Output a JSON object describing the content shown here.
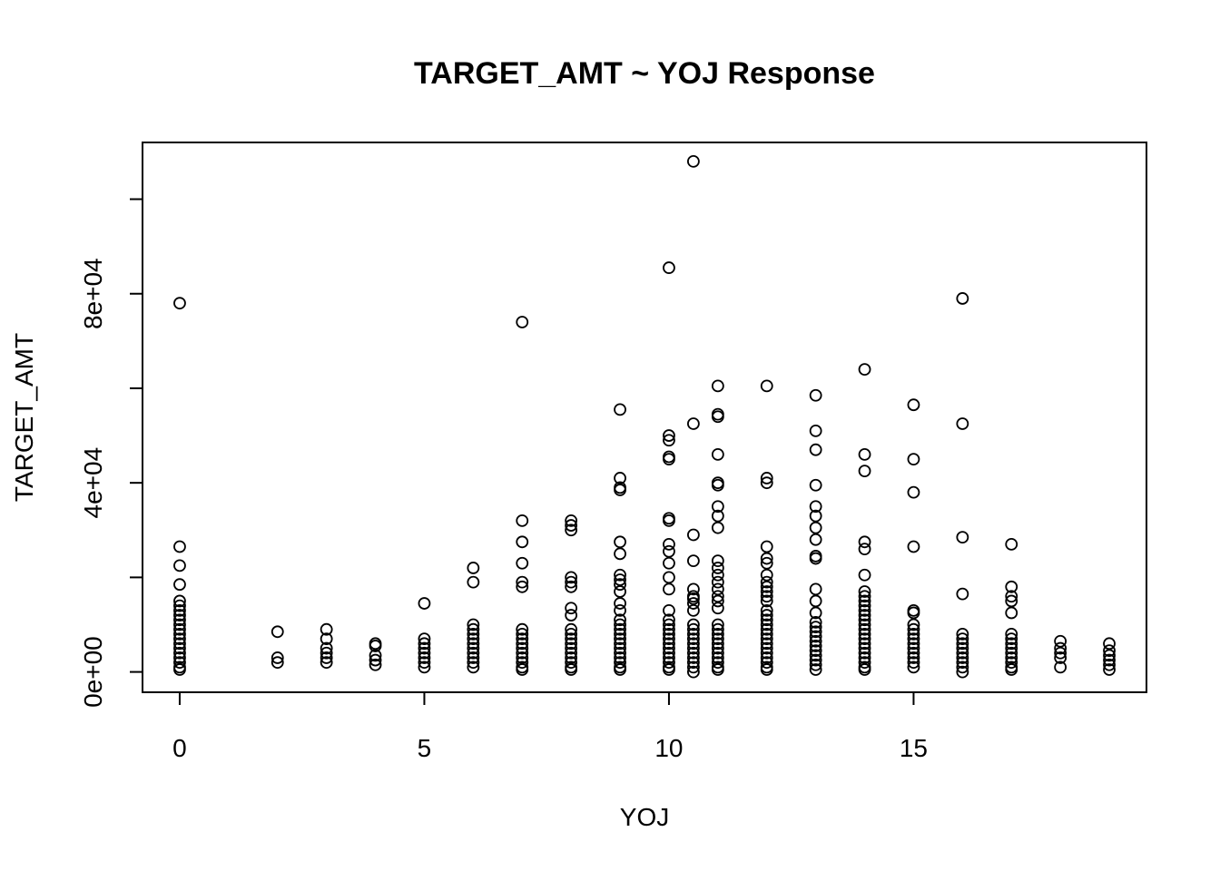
{
  "chart_data": {
    "type": "scatter",
    "title": "TARGET_AMT ~ YOJ Response",
    "xlabel": "YOJ",
    "ylabel": "TARGET_AMT",
    "xlim": [
      -0.76,
      19.76
    ],
    "ylim": [
      -4300,
      112000
    ],
    "x_ticks": [
      0,
      5,
      10,
      15
    ],
    "x_tick_labels": [
      "0",
      "5",
      "10",
      "15"
    ],
    "y_ticks": [
      0,
      20000,
      40000,
      60000,
      80000,
      100000
    ],
    "y_tick_labels": [
      "0e+00",
      "",
      "4e+04",
      "",
      "8e+04",
      ""
    ],
    "grid": false,
    "legend": "none",
    "points": [
      [
        0,
        78000
      ],
      [
        0,
        26500
      ],
      [
        0,
        22500
      ],
      [
        0,
        18500
      ],
      [
        0,
        15000
      ],
      [
        0,
        14000
      ],
      [
        0,
        13000
      ],
      [
        0,
        12000
      ],
      [
        0,
        11000
      ],
      [
        0,
        10000
      ],
      [
        0,
        9000
      ],
      [
        0,
        8000
      ],
      [
        0,
        7000
      ],
      [
        0,
        6000
      ],
      [
        0,
        5000
      ],
      [
        0,
        4000
      ],
      [
        0,
        3000
      ],
      [
        0,
        2000
      ],
      [
        0,
        1000
      ],
      [
        0,
        500
      ],
      [
        2,
        8500
      ],
      [
        2,
        3000
      ],
      [
        2,
        2000
      ],
      [
        3,
        9000
      ],
      [
        3,
        7000
      ],
      [
        3,
        5000
      ],
      [
        3,
        4000
      ],
      [
        3,
        3000
      ],
      [
        3,
        2000
      ],
      [
        4,
        6000
      ],
      [
        4,
        5500
      ],
      [
        4,
        3500
      ],
      [
        4,
        2500
      ],
      [
        4,
        1500
      ],
      [
        5,
        14500
      ],
      [
        5,
        7000
      ],
      [
        5,
        6000
      ],
      [
        5,
        5000
      ],
      [
        5,
        4000
      ],
      [
        5,
        3000
      ],
      [
        5,
        2000
      ],
      [
        5,
        1000
      ],
      [
        6,
        22000
      ],
      [
        6,
        19000
      ],
      [
        6,
        10000
      ],
      [
        6,
        9000
      ],
      [
        6,
        8000
      ],
      [
        6,
        7000
      ],
      [
        6,
        6000
      ],
      [
        6,
        5000
      ],
      [
        6,
        4000
      ],
      [
        6,
        3000
      ],
      [
        6,
        2000
      ],
      [
        6,
        1000
      ],
      [
        7,
        74000
      ],
      [
        7,
        32000
      ],
      [
        7,
        27500
      ],
      [
        7,
        23000
      ],
      [
        7,
        19000
      ],
      [
        7,
        18000
      ],
      [
        7,
        9000
      ],
      [
        7,
        8000
      ],
      [
        7,
        7000
      ],
      [
        7,
        6000
      ],
      [
        7,
        5000
      ],
      [
        7,
        4000
      ],
      [
        7,
        3000
      ],
      [
        7,
        2000
      ],
      [
        7,
        1000
      ],
      [
        7,
        500
      ],
      [
        8,
        32000
      ],
      [
        8,
        31000
      ],
      [
        8,
        30000
      ],
      [
        8,
        20000
      ],
      [
        8,
        19000
      ],
      [
        8,
        18000
      ],
      [
        8,
        13500
      ],
      [
        8,
        12000
      ],
      [
        8,
        9000
      ],
      [
        8,
        8000
      ],
      [
        8,
        7000
      ],
      [
        8,
        6000
      ],
      [
        8,
        5000
      ],
      [
        8,
        4000
      ],
      [
        8,
        3000
      ],
      [
        8,
        2000
      ],
      [
        8,
        1000
      ],
      [
        8,
        500
      ],
      [
        9,
        55500
      ],
      [
        9,
        41000
      ],
      [
        9,
        39000
      ],
      [
        9,
        38500
      ],
      [
        9,
        27500
      ],
      [
        9,
        25000
      ],
      [
        9,
        20500
      ],
      [
        9,
        19500
      ],
      [
        9,
        18500
      ],
      [
        9,
        17000
      ],
      [
        9,
        14500
      ],
      [
        9,
        13000
      ],
      [
        9,
        11000
      ],
      [
        9,
        10000
      ],
      [
        9,
        9000
      ],
      [
        9,
        8000
      ],
      [
        9,
        7000
      ],
      [
        9,
        6000
      ],
      [
        9,
        5000
      ],
      [
        9,
        4000
      ],
      [
        9,
        3000
      ],
      [
        9,
        2000
      ],
      [
        9,
        1000
      ],
      [
        9,
        500
      ],
      [
        10,
        85500
      ],
      [
        10,
        50000
      ],
      [
        10,
        49000
      ],
      [
        10,
        45500
      ],
      [
        10,
        45000
      ],
      [
        10,
        32500
      ],
      [
        10,
        32000
      ],
      [
        10,
        27000
      ],
      [
        10,
        25500
      ],
      [
        10,
        23000
      ],
      [
        10,
        20000
      ],
      [
        10,
        17500
      ],
      [
        10,
        13000
      ],
      [
        10,
        11000
      ],
      [
        10,
        10000
      ],
      [
        10,
        9000
      ],
      [
        10,
        8000
      ],
      [
        10,
        7000
      ],
      [
        10,
        6000
      ],
      [
        10,
        5000
      ],
      [
        10,
        4000
      ],
      [
        10,
        3000
      ],
      [
        10,
        2000
      ],
      [
        10,
        1000
      ],
      [
        10,
        500
      ],
      [
        10.5,
        108000
      ],
      [
        10.5,
        52500
      ],
      [
        10.5,
        29000
      ],
      [
        10.5,
        23500
      ],
      [
        10.5,
        17500
      ],
      [
        10.5,
        16000
      ],
      [
        10.5,
        15500
      ],
      [
        10.5,
        14500
      ],
      [
        10.5,
        13000
      ],
      [
        10.5,
        10000
      ],
      [
        10.5,
        9000
      ],
      [
        10.5,
        8000
      ],
      [
        10.5,
        7000
      ],
      [
        10.5,
        6000
      ],
      [
        10.5,
        5000
      ],
      [
        10.5,
        4000
      ],
      [
        10.5,
        3000
      ],
      [
        10.5,
        2000
      ],
      [
        10.5,
        1000
      ],
      [
        10.5,
        0
      ],
      [
        11,
        60500
      ],
      [
        11,
        54500
      ],
      [
        11,
        54000
      ],
      [
        11,
        46000
      ],
      [
        11,
        40000
      ],
      [
        11,
        39500
      ],
      [
        11,
        35000
      ],
      [
        11,
        33000
      ],
      [
        11,
        30500
      ],
      [
        11,
        23500
      ],
      [
        11,
        22000
      ],
      [
        11,
        20500
      ],
      [
        11,
        19000
      ],
      [
        11,
        17500
      ],
      [
        11,
        16000
      ],
      [
        11,
        15000
      ],
      [
        11,
        13500
      ],
      [
        11,
        10000
      ],
      [
        11,
        9000
      ],
      [
        11,
        8000
      ],
      [
        11,
        7000
      ],
      [
        11,
        6000
      ],
      [
        11,
        5000
      ],
      [
        11,
        4000
      ],
      [
        11,
        3000
      ],
      [
        11,
        2000
      ],
      [
        11,
        1000
      ],
      [
        11,
        500
      ],
      [
        12,
        60500
      ],
      [
        12,
        41000
      ],
      [
        12,
        40000
      ],
      [
        12,
        26500
      ],
      [
        12,
        24000
      ],
      [
        12,
        23000
      ],
      [
        12,
        20500
      ],
      [
        12,
        19000
      ],
      [
        12,
        18000
      ],
      [
        12,
        17000
      ],
      [
        12,
        16000
      ],
      [
        12,
        15000
      ],
      [
        12,
        13000
      ],
      [
        12,
        12000
      ],
      [
        12,
        11000
      ],
      [
        12,
        10000
      ],
      [
        12,
        9000
      ],
      [
        12,
        8000
      ],
      [
        12,
        7000
      ],
      [
        12,
        6000
      ],
      [
        12,
        5000
      ],
      [
        12,
        4000
      ],
      [
        12,
        3000
      ],
      [
        12,
        2000
      ],
      [
        12,
        1000
      ],
      [
        12,
        500
      ],
      [
        13,
        58500
      ],
      [
        13,
        51000
      ],
      [
        13,
        47000
      ],
      [
        13,
        39500
      ],
      [
        13,
        35000
      ],
      [
        13,
        33000
      ],
      [
        13,
        30500
      ],
      [
        13,
        28000
      ],
      [
        13,
        24500
      ],
      [
        13,
        24000
      ],
      [
        13,
        17500
      ],
      [
        13,
        15000
      ],
      [
        13,
        12500
      ],
      [
        13,
        10500
      ],
      [
        13,
        9500
      ],
      [
        13,
        8500
      ],
      [
        13,
        7500
      ],
      [
        13,
        6500
      ],
      [
        13,
        5500
      ],
      [
        13,
        4500
      ],
      [
        13,
        3500
      ],
      [
        13,
        2500
      ],
      [
        13,
        1500
      ],
      [
        13,
        500
      ],
      [
        14,
        64000
      ],
      [
        14,
        46000
      ],
      [
        14,
        42500
      ],
      [
        14,
        27500
      ],
      [
        14,
        26000
      ],
      [
        14,
        20500
      ],
      [
        14,
        17000
      ],
      [
        14,
        16000
      ],
      [
        14,
        15000
      ],
      [
        14,
        14000
      ],
      [
        14,
        13000
      ],
      [
        14,
        12000
      ],
      [
        14,
        11000
      ],
      [
        14,
        10000
      ],
      [
        14,
        9000
      ],
      [
        14,
        8000
      ],
      [
        14,
        7000
      ],
      [
        14,
        6000
      ],
      [
        14,
        5000
      ],
      [
        14,
        4000
      ],
      [
        14,
        3000
      ],
      [
        14,
        2000
      ],
      [
        14,
        1000
      ],
      [
        14,
        500
      ],
      [
        15,
        56500
      ],
      [
        15,
        45000
      ],
      [
        15,
        38000
      ],
      [
        15,
        26500
      ],
      [
        15,
        13000
      ],
      [
        15,
        12500
      ],
      [
        15,
        10000
      ],
      [
        15,
        9000
      ],
      [
        15,
        8000
      ],
      [
        15,
        7000
      ],
      [
        15,
        6000
      ],
      [
        15,
        5000
      ],
      [
        15,
        4000
      ],
      [
        15,
        3000
      ],
      [
        15,
        2000
      ],
      [
        15,
        1000
      ],
      [
        16,
        79000
      ],
      [
        16,
        52500
      ],
      [
        16,
        28500
      ],
      [
        16,
        16500
      ],
      [
        16,
        8000
      ],
      [
        16,
        7000
      ],
      [
        16,
        6000
      ],
      [
        16,
        5000
      ],
      [
        16,
        4000
      ],
      [
        16,
        3000
      ],
      [
        16,
        2000
      ],
      [
        16,
        1000
      ],
      [
        16,
        0
      ],
      [
        17,
        27000
      ],
      [
        17,
        18000
      ],
      [
        17,
        16000
      ],
      [
        17,
        15000
      ],
      [
        17,
        12500
      ],
      [
        17,
        8000
      ],
      [
        17,
        7000
      ],
      [
        17,
        6000
      ],
      [
        17,
        5000
      ],
      [
        17,
        4000
      ],
      [
        17,
        3000
      ],
      [
        17,
        2000
      ],
      [
        17,
        1000
      ],
      [
        17,
        500
      ],
      [
        18,
        6500
      ],
      [
        18,
        5000
      ],
      [
        18,
        4000
      ],
      [
        18,
        3000
      ],
      [
        18,
        1000
      ],
      [
        19,
        6000
      ],
      [
        19,
        4500
      ],
      [
        19,
        3500
      ],
      [
        19,
        2500
      ],
      [
        19,
        1500
      ],
      [
        19,
        500
      ]
    ]
  }
}
